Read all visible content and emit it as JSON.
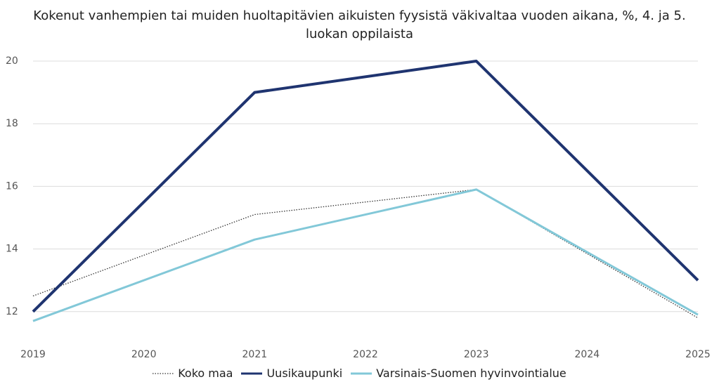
{
  "chart_data": {
    "type": "line",
    "title": "Kokenut vanhempien tai muiden huoltapitävien aikuisten fyysistä väkivaltaa vuoden aikana, %, 4. ja 5. luokan oppilaista",
    "x": [
      2019,
      2021,
      2023,
      2025
    ],
    "xlim": [
      2019,
      2025
    ],
    "xticks": [
      2019,
      2020,
      2021,
      2022,
      2023,
      2024,
      2025
    ],
    "ylim": [
      11.3,
      20
    ],
    "yticks": [
      12,
      14,
      16,
      18,
      20
    ],
    "grid": true,
    "legend": "bottom",
    "series": [
      {
        "name": "Koko maa",
        "color": "#333333",
        "style": "dotted",
        "values": [
          12.5,
          15.1,
          15.9,
          11.8
        ]
      },
      {
        "name": "Uusikaupunki",
        "color": "#1f3470",
        "style": "bold",
        "values": [
          12,
          19,
          20,
          13
        ]
      },
      {
        "name": "Varsinais-Suomen hyvinvointialue",
        "color": "#82c8d8",
        "style": "solid",
        "values": [
          11.7,
          14.3,
          15.9,
          11.9
        ]
      }
    ]
  }
}
